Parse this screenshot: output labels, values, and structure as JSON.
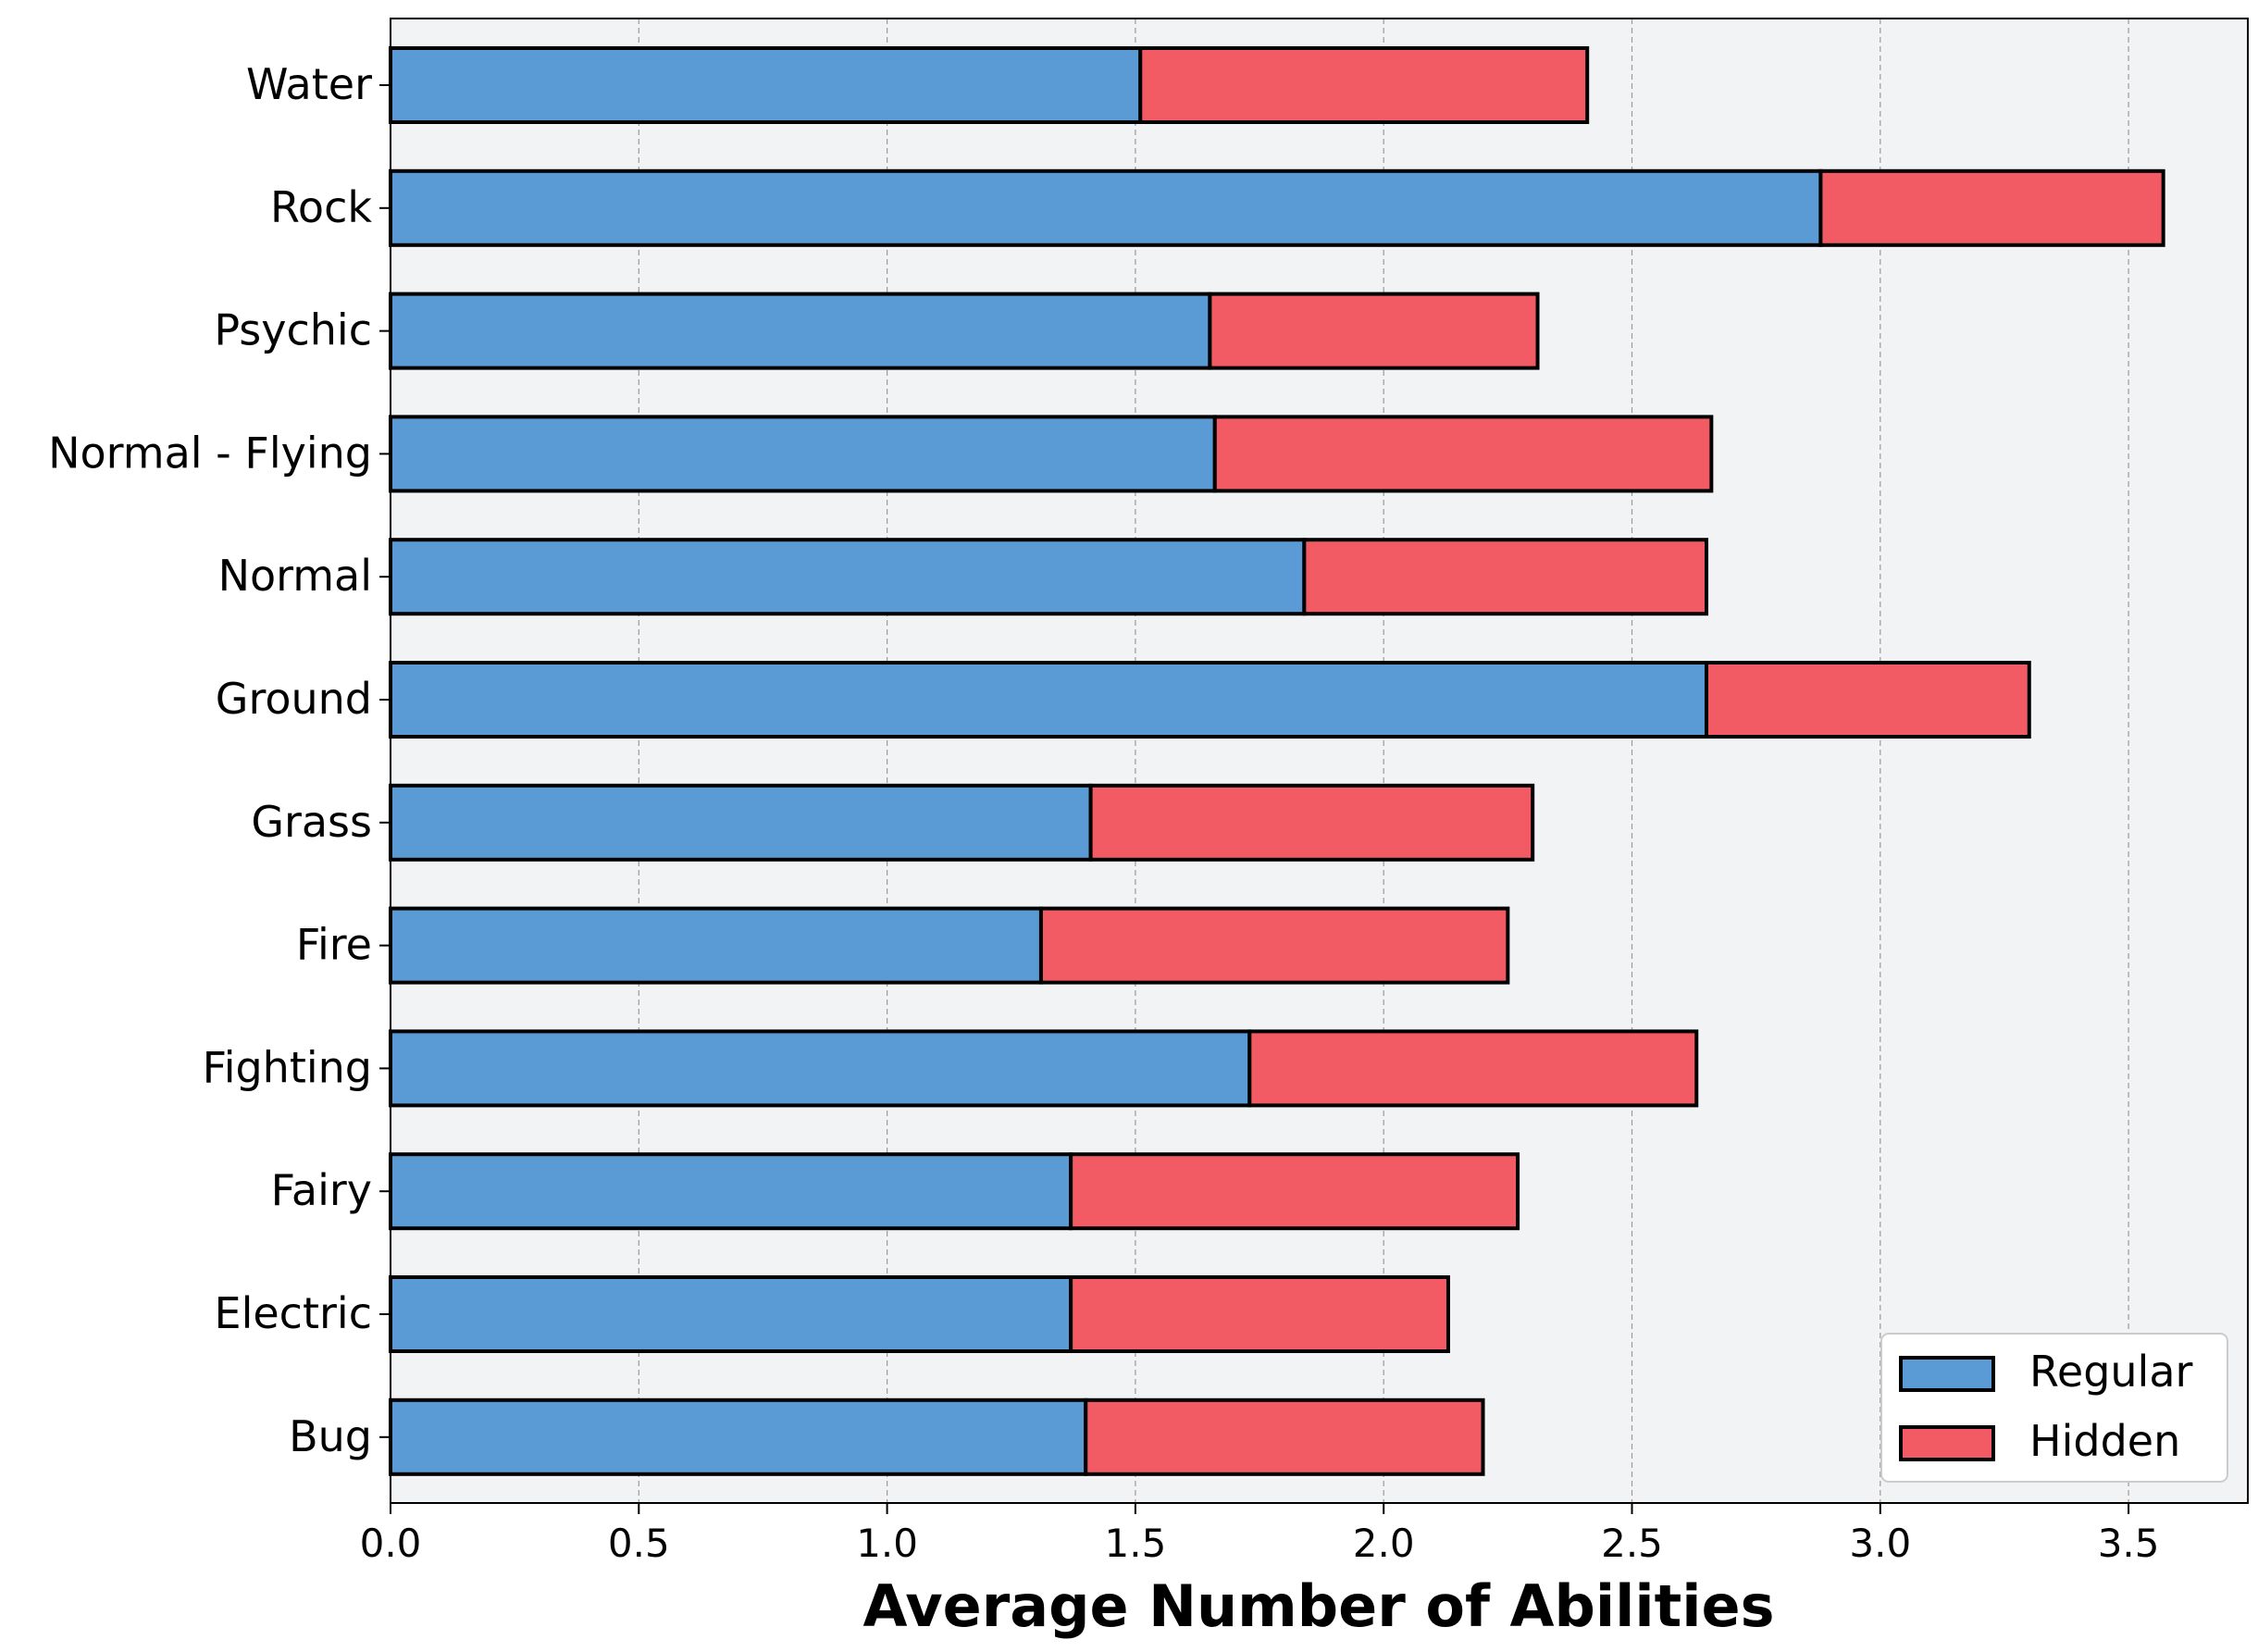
{
  "chart_data": {
    "type": "bar",
    "orientation": "horizontal",
    "stacked": true,
    "title": "",
    "xlabel": "Average Number of Abilities",
    "ylabel": "",
    "xlim": [
      0,
      3.75
    ],
    "xticks": [
      0.0,
      0.5,
      1.0,
      1.5,
      2.0,
      2.5,
      3.0,
      3.5
    ],
    "xtick_labels": [
      "0.0",
      "0.5",
      "1.0",
      "1.5",
      "2.0",
      "2.5",
      "3.0",
      "3.5"
    ],
    "grid": "x-dashed",
    "legend_position": "bottom-right",
    "categories": [
      "Water",
      "Rock",
      "Psychic",
      "Normal - Flying",
      "Normal",
      "Ground",
      "Grass",
      "Fire",
      "Fighting",
      "Fairy",
      "Electric",
      "Bug"
    ],
    "series": [
      {
        "name": "Regular",
        "color": "#5b9bd5",
        "values": [
          1.51,
          2.88,
          1.65,
          1.66,
          1.84,
          2.65,
          1.41,
          1.31,
          1.73,
          1.37,
          1.37,
          1.4
        ]
      },
      {
        "name": "Hidden",
        "color": "#f25a64",
        "values": [
          0.9,
          0.69,
          0.66,
          1.0,
          0.81,
          0.65,
          0.89,
          0.94,
          0.9,
          0.9,
          0.76,
          0.8
        ]
      }
    ]
  }
}
